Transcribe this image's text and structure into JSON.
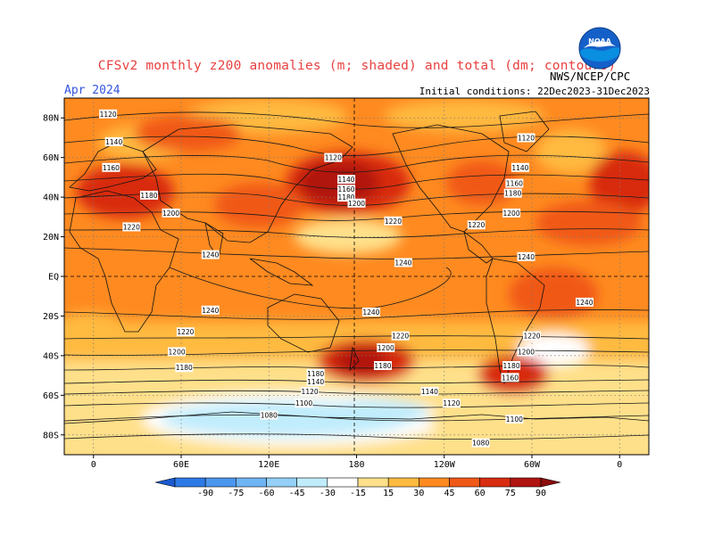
{
  "header": {
    "title": "CFSv2 monthly z200 anomalies (m; shaded) and total (dm; contours)",
    "month": "Apr 2024",
    "initial_conditions": "Initial conditions: 22Dec2023-31Dec2023",
    "agency": "NWS/NCEP/CPC",
    "logo_text": "NOAA"
  },
  "map": {
    "lat_labels": [
      "80N",
      "60N",
      "40N",
      "20N",
      "EQ",
      "20S",
      "40S",
      "60S",
      "80S"
    ],
    "lon_labels": [
      "0",
      "60E",
      "120E",
      "180",
      "120W",
      "60W",
      "0"
    ]
  },
  "contour_labels": [
    {
      "text": "1120",
      "lon": 10,
      "lat": 82
    },
    {
      "text": "1140",
      "lon": 14,
      "lat": 68
    },
    {
      "text": "1160",
      "lon": 12,
      "lat": 55
    },
    {
      "text": "1180",
      "lon": 38,
      "lat": 41
    },
    {
      "text": "1200",
      "lon": 53,
      "lat": 32
    },
    {
      "text": "1220",
      "lon": 26,
      "lat": 25
    },
    {
      "text": "1240",
      "lon": 80,
      "lat": 11
    },
    {
      "text": "1120",
      "lon": 164,
      "lat": 60
    },
    {
      "text": "1140",
      "lon": 173,
      "lat": 49
    },
    {
      "text": "1160",
      "lon": 173,
      "lat": 44
    },
    {
      "text": "1180",
      "lon": 173,
      "lat": 40
    },
    {
      "text": "1200",
      "lon": 180,
      "lat": 37
    },
    {
      "text": "1220",
      "lon": 205,
      "lat": 28
    },
    {
      "text": "1240",
      "lon": 212,
      "lat": 7
    },
    {
      "text": "1120",
      "lon": 296,
      "lat": 70
    },
    {
      "text": "1140",
      "lon": 292,
      "lat": 55
    },
    {
      "text": "1160",
      "lon": 288,
      "lat": 47
    },
    {
      "text": "1180",
      "lon": 287,
      "lat": 42
    },
    {
      "text": "1200",
      "lon": 286,
      "lat": 32
    },
    {
      "text": "1220",
      "lon": 262,
      "lat": 26
    },
    {
      "text": "1240",
      "lon": 296,
      "lat": 10
    },
    {
      "text": "1240",
      "lon": 336,
      "lat": -13
    },
    {
      "text": "1240",
      "lon": 80,
      "lat": -17
    },
    {
      "text": "1220",
      "lon": 63,
      "lat": -28
    },
    {
      "text": "1200",
      "lon": 57,
      "lat": -38
    },
    {
      "text": "1180",
      "lon": 62,
      "lat": -46
    },
    {
      "text": "1240",
      "lon": 190,
      "lat": -18
    },
    {
      "text": "1220",
      "lon": 210,
      "lat": -30
    },
    {
      "text": "1200",
      "lon": 200,
      "lat": -36
    },
    {
      "text": "1180",
      "lon": 198,
      "lat": -45
    },
    {
      "text": "1180",
      "lon": 152,
      "lat": -49
    },
    {
      "text": "1140",
      "lon": 152,
      "lat": -53
    },
    {
      "text": "1120",
      "lon": 148,
      "lat": -58
    },
    {
      "text": "1100",
      "lon": 144,
      "lat": -64
    },
    {
      "text": "1080",
      "lon": 120,
      "lat": -70
    },
    {
      "text": "1140",
      "lon": 230,
      "lat": -58
    },
    {
      "text": "1120",
      "lon": 245,
      "lat": -64
    },
    {
      "text": "1100",
      "lon": 288,
      "lat": -72
    },
    {
      "text": "1080",
      "lon": 265,
      "lat": -84
    },
    {
      "text": "1220",
      "lon": 300,
      "lat": -30
    },
    {
      "text": "1200",
      "lon": 296,
      "lat": -38
    },
    {
      "text": "1180",
      "lon": 286,
      "lat": -45
    },
    {
      "text": "1160",
      "lon": 285,
      "lat": -51
    }
  ],
  "colorbar": {
    "labels": [
      "-90",
      "-75",
      "-60",
      "-45",
      "-30",
      "-15",
      "15",
      "30",
      "45",
      "60",
      "75",
      "90"
    ],
    "colors": [
      "#1a5ad0",
      "#2d7ae6",
      "#4b96ee",
      "#6fb4f4",
      "#94d0f8",
      "#c0ecfc",
      "#ffffff",
      "#ffe08a",
      "#ffba40",
      "#ff8a20",
      "#f05818",
      "#d82c10",
      "#b01410",
      "#8a0c0c"
    ]
  }
}
